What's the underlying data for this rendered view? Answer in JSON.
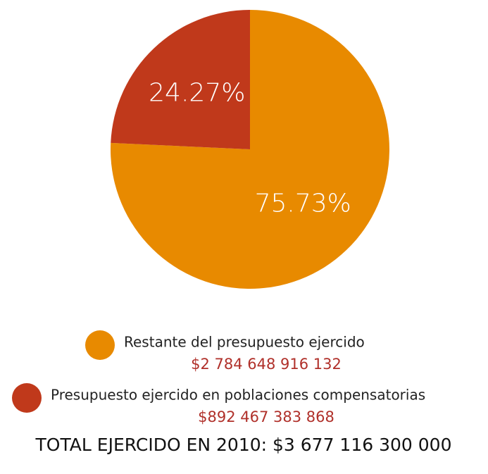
{
  "chart_data": {
    "type": "pie",
    "categories": [
      "Restante del presupuesto ejercido",
      "Presupuesto ejercido en poblaciones compensatorias"
    ],
    "values": [
      75.73,
      24.27
    ],
    "value_labels": [
      "75.73%",
      "24.27%"
    ],
    "colors": [
      "#e88a00",
      "#c0391b"
    ],
    "legend_amounts": [
      "$2 784 648 916 132",
      "$892 467 383 868"
    ],
    "footer": "TOTAL EJERCIDO EN 2010: $3 677 116 300 000"
  }
}
